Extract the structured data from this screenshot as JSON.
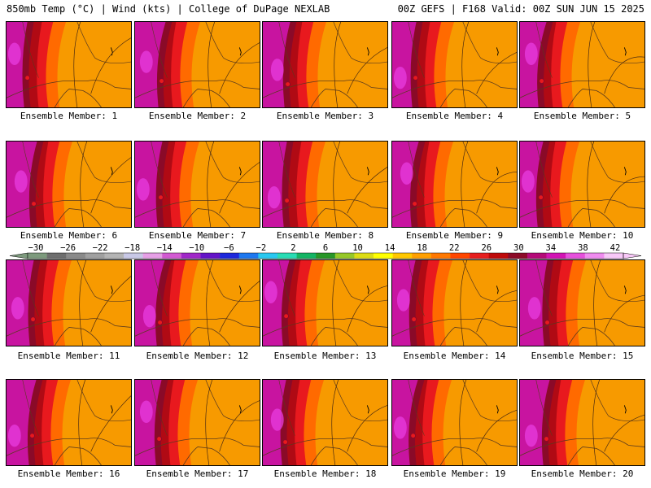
{
  "header": {
    "left": "850mb Temp (°C) | Wind (kts) | College of DuPage NEXLAB",
    "right": "00Z GEFS | F168 Valid: 00Z SUN JUN 15 2025"
  },
  "panels": [
    {
      "label": "Ensemble Member: 1"
    },
    {
      "label": "Ensemble Member: 2"
    },
    {
      "label": "Ensemble Member: 3"
    },
    {
      "label": "Ensemble Member: 4"
    },
    {
      "label": "Ensemble Member: 5"
    },
    {
      "label": "Ensemble Member: 6"
    },
    {
      "label": "Ensemble Member: 7"
    },
    {
      "label": "Ensemble Member: 8"
    },
    {
      "label": "Ensemble Member: 9"
    },
    {
      "label": "Ensemble Member: 10"
    },
    {
      "label": "Ensemble Member: 11"
    },
    {
      "label": "Ensemble Member: 12"
    },
    {
      "label": "Ensemble Member: 13"
    },
    {
      "label": "Ensemble Member: 14"
    },
    {
      "label": "Ensemble Member: 15"
    },
    {
      "label": "Ensemble Member: 16"
    },
    {
      "label": "Ensemble Member: 17"
    },
    {
      "label": "Ensemble Member: 18"
    },
    {
      "label": "Ensemble Member: 19"
    },
    {
      "label": "Ensemble Member: 20"
    }
  ],
  "colorbar": {
    "ticks": [
      -30,
      -26,
      -22,
      -18,
      -14,
      -10,
      -6,
      -2,
      2,
      6,
      10,
      14,
      18,
      22,
      26,
      30,
      34,
      38,
      42
    ],
    "colors": [
      "#7d9a7d",
      "#6e6e6e",
      "#8a8a8a",
      "#a0a0a0",
      "#b4b4b4",
      "#c8c8e6",
      "#e6a0e6",
      "#d25ad2",
      "#a028c8",
      "#6414c8",
      "#1e28dc",
      "#1e78f0",
      "#28c8f0",
      "#28dcb4",
      "#14b464",
      "#289628",
      "#96c828",
      "#dcdc14",
      "#ffff00",
      "#ffc800",
      "#ffa000",
      "#ff7800",
      "#ff4600",
      "#e61e1e",
      "#be0a0a",
      "#8c0a28",
      "#b40a78",
      "#d214b4",
      "#e650dc",
      "#f08cf0",
      "#f8c8f8"
    ]
  },
  "colors": {
    "warm": "#f79a00",
    "hot": "#ff6a00",
    "red": "#e8191e",
    "darkred": "#b00a14",
    "maroon": "#8a0a28",
    "magenta": "#c814a0",
    "pink": "#e83ce0",
    "border": "#5a3a1e"
  }
}
